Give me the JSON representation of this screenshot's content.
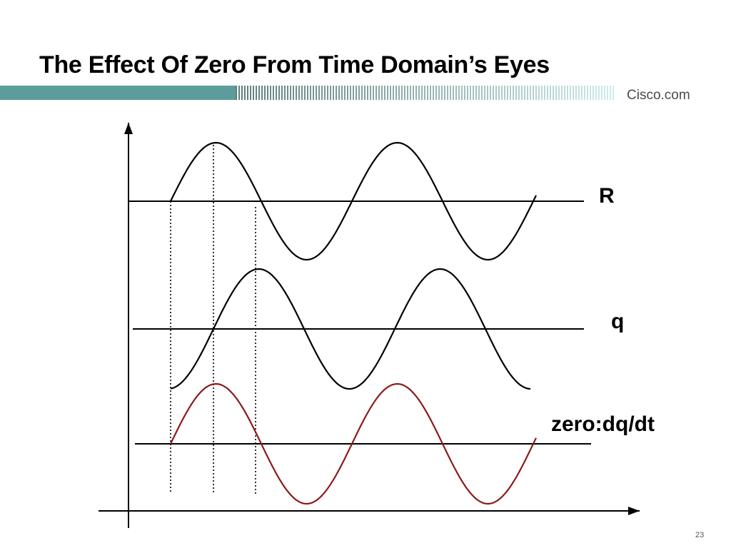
{
  "slide": {
    "title": "The Effect Of Zero From Time Domain’s Eyes",
    "brand": "Cisco.com",
    "page_number": "23"
  },
  "diagram": {
    "signals": [
      {
        "label": "R",
        "color": "#000000"
      },
      {
        "label": "q",
        "color": "#000000"
      },
      {
        "label": "zero:dq/dt",
        "color": "#8b1a1a"
      }
    ]
  },
  "colors": {
    "banner_teal": "#5a9a9a",
    "zero_curve": "#8b1a1a",
    "axis": "#000000"
  }
}
